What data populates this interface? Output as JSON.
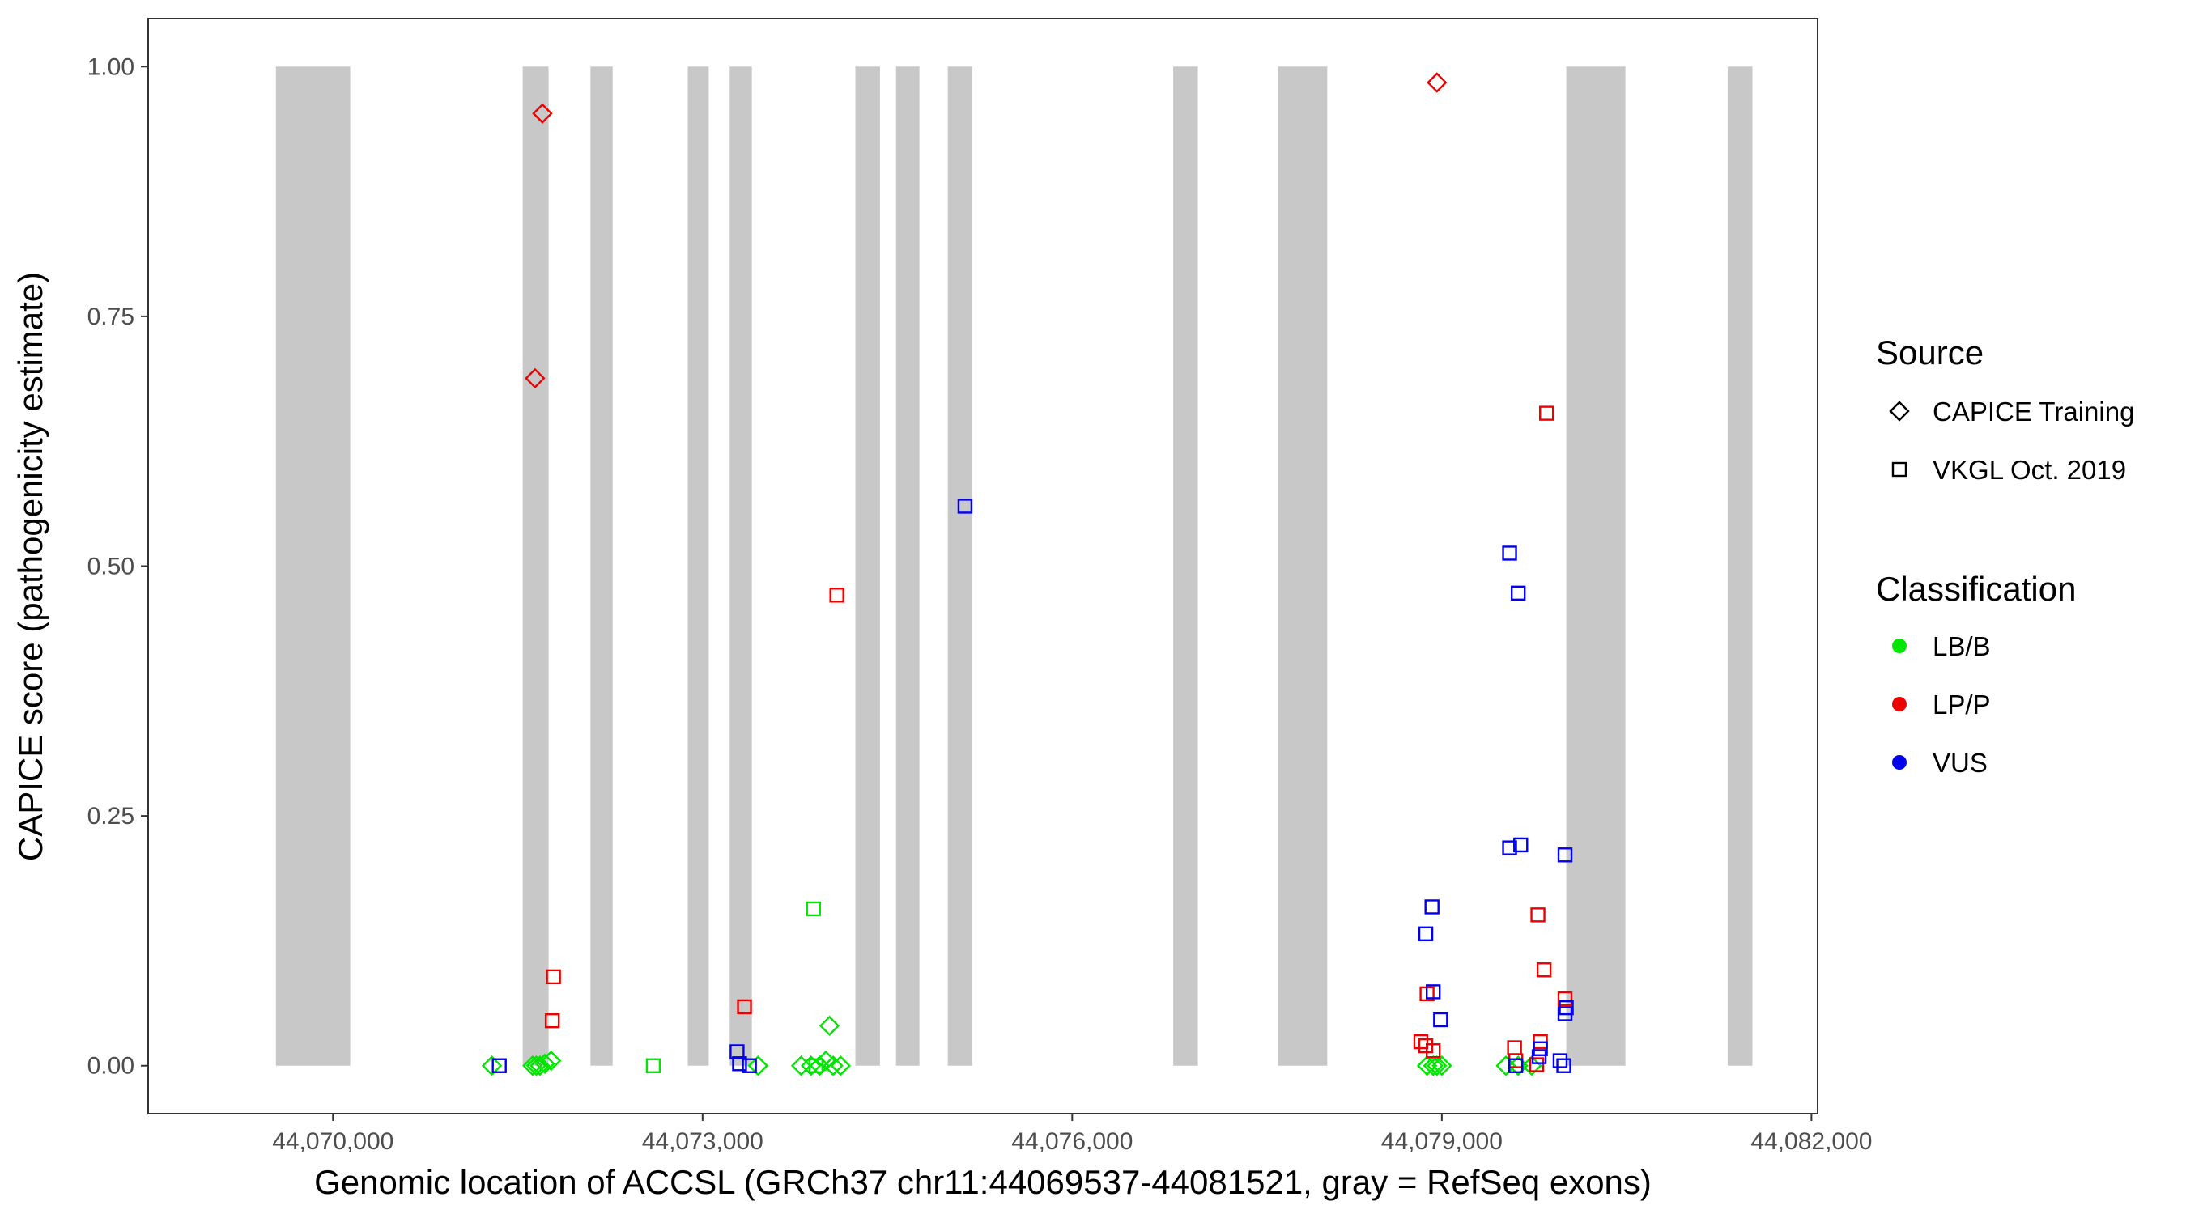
{
  "chart_data": {
    "type": "scatter",
    "xlabel": "Genomic location of ACCSL (GRCh37 chr11:44069537-44081521, gray = RefSeq exons)",
    "ylabel": "CAPICE score (pathogenicity estimate)",
    "xlim": [
      44068500,
      44082050
    ],
    "ylim": [
      -0.048,
      1.048
    ],
    "x_ticks": [
      44070000,
      44073000,
      44076000,
      44079000,
      44082000
    ],
    "x_tick_labels": [
      "44,070,000",
      "44,073,000",
      "44,076,000",
      "44,079,000",
      "44,082,000"
    ],
    "y_ticks": [
      0,
      0.25,
      0.5,
      0.75,
      1.0
    ],
    "y_tick_labels": [
      "0.00",
      "0.25",
      "0.50",
      "0.75",
      "1.00"
    ],
    "grid": false,
    "exon_color": "#c8c8c8",
    "exons": [
      [
        44069537,
        44070140
      ],
      [
        44071540,
        44071750
      ],
      [
        44072090,
        44072270
      ],
      [
        44072880,
        44073050
      ],
      [
        44073220,
        44073400
      ],
      [
        44074240,
        44074440
      ],
      [
        44074570,
        44074760
      ],
      [
        44074990,
        44075190
      ],
      [
        44076820,
        44077020
      ],
      [
        44077670,
        44078070
      ],
      [
        44080010,
        44080490
      ],
      [
        44081320,
        44081521
      ]
    ],
    "legend": {
      "placement": "right",
      "source_title": "Source",
      "source_items": [
        {
          "label": "CAPICE Training",
          "shape": "diamond"
        },
        {
          "label": "VKGL Oct. 2019",
          "shape": "square"
        }
      ],
      "class_title": "Classification",
      "class_items": [
        {
          "label": "LB/B",
          "color": "#00e600"
        },
        {
          "label": "LP/P",
          "color": "#ee0000"
        },
        {
          "label": "VUS",
          "color": "#0000ee"
        }
      ]
    },
    "series": [
      {
        "source": "CAPICE Training",
        "class": "LB/B",
        "points": [
          [
            44071290,
            0.0
          ],
          [
            44071620,
            0.0
          ],
          [
            44071650,
            0.0
          ],
          [
            44071680,
            0.0
          ],
          [
            44071720,
            0.002
          ],
          [
            44071770,
            0.005
          ],
          [
            44073450,
            0.0
          ],
          [
            44073800,
            0.0
          ],
          [
            44073880,
            0.0
          ],
          [
            44073950,
            0.0
          ],
          [
            44074000,
            0.005
          ],
          [
            44074030,
            0.04
          ],
          [
            44074060,
            0.0
          ],
          [
            44074120,
            0.0
          ],
          [
            44078880,
            0.0
          ],
          [
            44078930,
            0.0
          ],
          [
            44078960,
            0.0
          ],
          [
            44079000,
            0.0
          ],
          [
            44079520,
            0.0
          ],
          [
            44079620,
            0.0
          ],
          [
            44079730,
            0.0
          ]
        ]
      },
      {
        "source": "CAPICE Training",
        "class": "LP/P",
        "points": [
          [
            44071700,
            0.953
          ],
          [
            44071640,
            0.688
          ],
          [
            44078960,
            0.984
          ]
        ]
      },
      {
        "source": "VKGL Oct. 2019",
        "class": "LB/B",
        "points": [
          [
            44072600,
            0.0
          ],
          [
            44073900,
            0.157
          ],
          [
            44073920,
            0.0
          ]
        ]
      },
      {
        "source": "VKGL Oct. 2019",
        "class": "LP/P",
        "points": [
          [
            44071790,
            0.089
          ],
          [
            44071780,
            0.045
          ],
          [
            44073340,
            0.059
          ],
          [
            44074090,
            0.471
          ],
          [
            44078830,
            0.024
          ],
          [
            44078880,
            0.072
          ],
          [
            44078870,
            0.02
          ],
          [
            44078930,
            0.015
          ],
          [
            44079590,
            0.018
          ],
          [
            44079600,
            0.005
          ],
          [
            44079780,
            0.151
          ],
          [
            44079800,
            0.024
          ],
          [
            44079830,
            0.096
          ],
          [
            44079850,
            0.653
          ],
          [
            44080000,
            0.067
          ],
          [
            44079770,
            0.001
          ]
        ]
      },
      {
        "source": "VKGL Oct. 2019",
        "class": "VUS",
        "points": [
          [
            44071350,
            0.0
          ],
          [
            44073280,
            0.014
          ],
          [
            44073300,
            0.002
          ],
          [
            44073380,
            0.0
          ],
          [
            44075130,
            0.56
          ],
          [
            44078870,
            0.132
          ],
          [
            44078920,
            0.159
          ],
          [
            44078930,
            0.074
          ],
          [
            44078990,
            0.046
          ],
          [
            44079550,
            0.513
          ],
          [
            44079550,
            0.218
          ],
          [
            44079620,
            0.473
          ],
          [
            44079640,
            0.221
          ],
          [
            44079600,
            0.0
          ],
          [
            44079800,
            0.017
          ],
          [
            44079790,
            0.009
          ],
          [
            44079960,
            0.005
          ],
          [
            44079990,
            0.0
          ],
          [
            44080000,
            0.211
          ],
          [
            44080010,
            0.058
          ],
          [
            44080000,
            0.052
          ]
        ]
      }
    ]
  }
}
